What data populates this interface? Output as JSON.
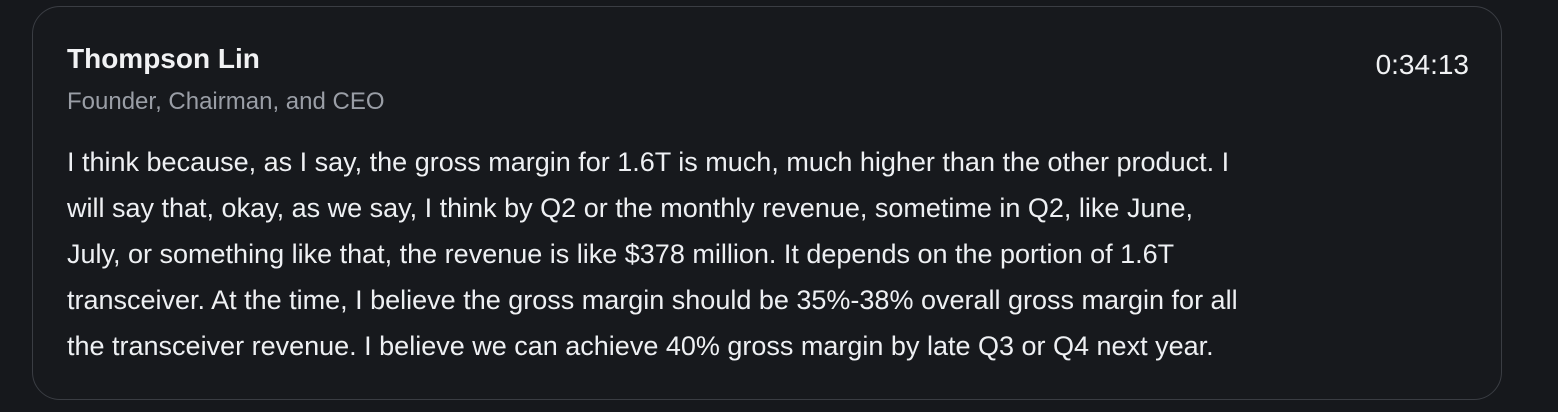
{
  "speaker": {
    "name": "Thompson Lin",
    "title": "Founder, Chairman, and CEO"
  },
  "timestamp": "0:34:13",
  "transcript_lines": [
    "I think because, as I say, the gross margin for 1.6T is much, much higher than the other product. I",
    "will say that, okay, as we say, I think by Q2 or the monthly revenue, sometime in Q2, like June,",
    "July, or something like that, the revenue is like $378 million. It depends on the portion of 1.6T",
    "transceiver. At the time, I believe the gross margin should be 35%-38% overall gross margin for all",
    "the transceiver revenue. I believe we can achieve 40% gross margin by late Q3 or Q4 next year."
  ],
  "colors": {
    "background": "#16181c",
    "card_border": "#3a3d43",
    "primary_text": "#eef0f3",
    "secondary_text": "#9a9ea6"
  }
}
